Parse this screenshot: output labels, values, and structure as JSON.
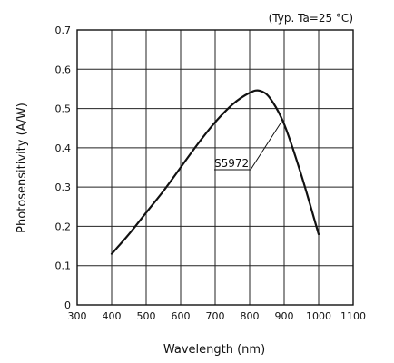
{
  "chart_data": {
    "type": "line",
    "title": "",
    "note": "(Typ. Ta=25 °C)",
    "xlabel": "Wavelength (nm)",
    "ylabel": "Photosensitivity (A/W)",
    "xlim": [
      300,
      1100
    ],
    "ylim": [
      0,
      0.7
    ],
    "xticks": [
      300,
      400,
      500,
      600,
      700,
      800,
      900,
      1000,
      1100
    ],
    "yticks": [
      0,
      0.1,
      0.2,
      0.3,
      0.4,
      0.5,
      0.6,
      0.7
    ],
    "grid": true,
    "series": [
      {
        "name": "S5972",
        "x": [
          400,
          450,
          500,
          550,
          600,
          650,
          700,
          750,
          800,
          830,
          860,
          900,
          950,
          1000
        ],
        "y": [
          0.13,
          0.18,
          0.235,
          0.29,
          0.35,
          0.41,
          0.465,
          0.51,
          0.54,
          0.545,
          0.525,
          0.46,
          0.33,
          0.18
        ]
      }
    ],
    "annotation": {
      "text": "S5972",
      "x": 900,
      "y": 0.48
    }
  }
}
